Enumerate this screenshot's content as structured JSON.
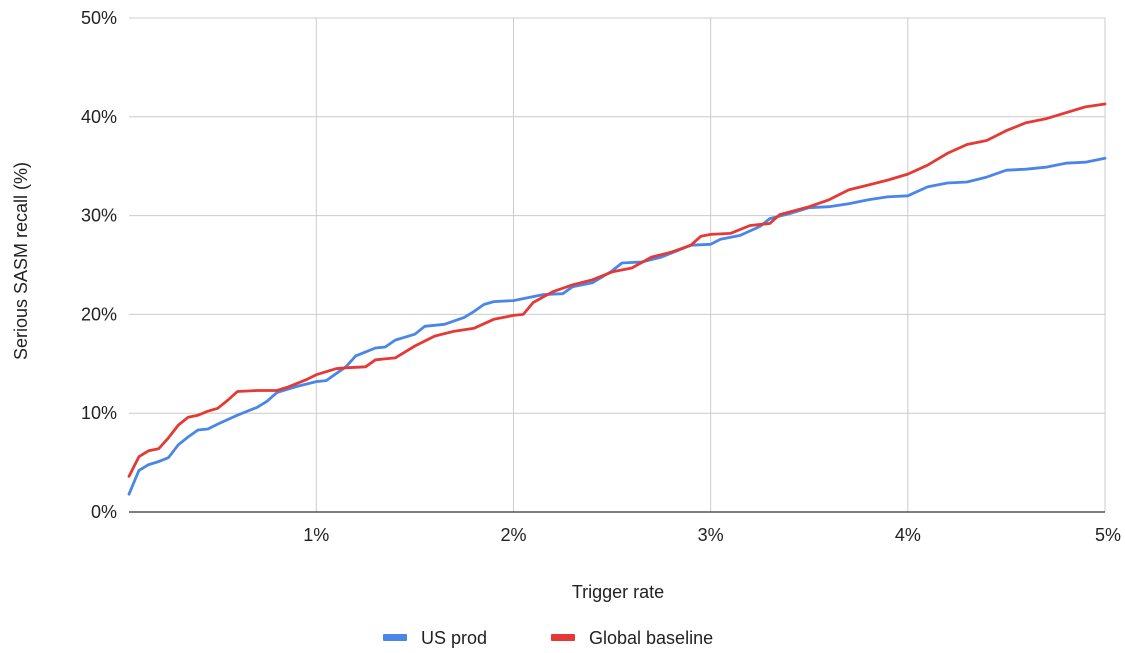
{
  "chart_data": {
    "type": "line",
    "title": "",
    "xlabel": "Trigger rate",
    "ylabel": "Serious SASM recall (%)",
    "xlim": [
      0.05,
      5
    ],
    "ylim": [
      0,
      50
    ],
    "x_ticks": [
      1,
      2,
      3,
      4,
      5
    ],
    "x_tick_labels": [
      "1%",
      "2%",
      "3%",
      "4%",
      "5%"
    ],
    "y_ticks": [
      0,
      10,
      20,
      30,
      40,
      50
    ],
    "y_tick_labels": [
      "0%",
      "10%",
      "20%",
      "30%",
      "40%",
      "50%"
    ],
    "grid": true,
    "legend_position": "bottom",
    "series": [
      {
        "name": "US prod",
        "color": "#4a86e8",
        "points": [
          [
            0.05,
            1.8
          ],
          [
            0.1,
            4.2
          ],
          [
            0.15,
            4.8
          ],
          [
            0.2,
            5.1
          ],
          [
            0.25,
            5.5
          ],
          [
            0.3,
            6.8
          ],
          [
            0.35,
            7.6
          ],
          [
            0.4,
            8.3
          ],
          [
            0.45,
            8.4
          ],
          [
            0.5,
            8.9
          ],
          [
            0.6,
            9.8
          ],
          [
            0.7,
            10.6
          ],
          [
            0.75,
            11.2
          ],
          [
            0.8,
            12.1
          ],
          [
            0.85,
            12.4
          ],
          [
            0.9,
            12.7
          ],
          [
            1.0,
            13.2
          ],
          [
            1.05,
            13.3
          ],
          [
            1.1,
            14.0
          ],
          [
            1.15,
            14.7
          ],
          [
            1.2,
            15.8
          ],
          [
            1.25,
            16.2
          ],
          [
            1.3,
            16.6
          ],
          [
            1.35,
            16.7
          ],
          [
            1.4,
            17.4
          ],
          [
            1.5,
            18.0
          ],
          [
            1.55,
            18.8
          ],
          [
            1.65,
            19.0
          ],
          [
            1.75,
            19.7
          ],
          [
            1.8,
            20.3
          ],
          [
            1.85,
            21.0
          ],
          [
            1.9,
            21.3
          ],
          [
            2.0,
            21.4
          ],
          [
            2.05,
            21.6
          ],
          [
            2.15,
            22.0
          ],
          [
            2.25,
            22.1
          ],
          [
            2.3,
            22.8
          ],
          [
            2.4,
            23.2
          ],
          [
            2.5,
            24.4
          ],
          [
            2.55,
            25.2
          ],
          [
            2.65,
            25.3
          ],
          [
            2.75,
            25.8
          ],
          [
            2.85,
            26.6
          ],
          [
            2.9,
            27.0
          ],
          [
            3.0,
            27.1
          ],
          [
            3.05,
            27.6
          ],
          [
            3.15,
            28.0
          ],
          [
            3.25,
            28.9
          ],
          [
            3.3,
            29.7
          ],
          [
            3.4,
            30.2
          ],
          [
            3.5,
            30.8
          ],
          [
            3.6,
            30.9
          ],
          [
            3.7,
            31.2
          ],
          [
            3.8,
            31.6
          ],
          [
            3.9,
            31.9
          ],
          [
            4.0,
            32.0
          ],
          [
            4.1,
            32.9
          ],
          [
            4.2,
            33.3
          ],
          [
            4.3,
            33.4
          ],
          [
            4.4,
            33.9
          ],
          [
            4.5,
            34.6
          ],
          [
            4.6,
            34.7
          ],
          [
            4.7,
            34.9
          ],
          [
            4.8,
            35.3
          ],
          [
            4.9,
            35.4
          ],
          [
            5.0,
            35.8
          ]
        ]
      },
      {
        "name": "Global baseline",
        "color": "#e53935",
        "points": [
          [
            0.05,
            3.6
          ],
          [
            0.1,
            5.6
          ],
          [
            0.15,
            6.2
          ],
          [
            0.2,
            6.4
          ],
          [
            0.25,
            7.5
          ],
          [
            0.3,
            8.8
          ],
          [
            0.35,
            9.6
          ],
          [
            0.4,
            9.8
          ],
          [
            0.45,
            10.2
          ],
          [
            0.5,
            10.5
          ],
          [
            0.55,
            11.3
          ],
          [
            0.6,
            12.2
          ],
          [
            0.7,
            12.3
          ],
          [
            0.8,
            12.3
          ],
          [
            0.85,
            12.6
          ],
          [
            0.9,
            13.0
          ],
          [
            0.95,
            13.4
          ],
          [
            1.0,
            13.9
          ],
          [
            1.05,
            14.2
          ],
          [
            1.1,
            14.5
          ],
          [
            1.15,
            14.6
          ],
          [
            1.25,
            14.7
          ],
          [
            1.3,
            15.4
          ],
          [
            1.4,
            15.6
          ],
          [
            1.5,
            16.8
          ],
          [
            1.6,
            17.8
          ],
          [
            1.7,
            18.3
          ],
          [
            1.8,
            18.6
          ],
          [
            1.9,
            19.5
          ],
          [
            2.0,
            19.9
          ],
          [
            2.05,
            20.0
          ],
          [
            2.1,
            21.2
          ],
          [
            2.2,
            22.3
          ],
          [
            2.3,
            23.0
          ],
          [
            2.4,
            23.5
          ],
          [
            2.5,
            24.3
          ],
          [
            2.6,
            24.7
          ],
          [
            2.7,
            25.8
          ],
          [
            2.8,
            26.3
          ],
          [
            2.9,
            27.0
          ],
          [
            2.95,
            27.9
          ],
          [
            3.0,
            28.1
          ],
          [
            3.1,
            28.2
          ],
          [
            3.2,
            29.0
          ],
          [
            3.3,
            29.2
          ],
          [
            3.35,
            30.1
          ],
          [
            3.5,
            30.9
          ],
          [
            3.6,
            31.6
          ],
          [
            3.7,
            32.6
          ],
          [
            3.8,
            33.1
          ],
          [
            3.9,
            33.6
          ],
          [
            4.0,
            34.2
          ],
          [
            4.1,
            35.1
          ],
          [
            4.2,
            36.3
          ],
          [
            4.3,
            37.2
          ],
          [
            4.4,
            37.6
          ],
          [
            4.5,
            38.6
          ],
          [
            4.6,
            39.4
          ],
          [
            4.7,
            39.8
          ],
          [
            4.8,
            40.4
          ],
          [
            4.9,
            41.0
          ],
          [
            5.0,
            41.3
          ]
        ]
      }
    ]
  }
}
